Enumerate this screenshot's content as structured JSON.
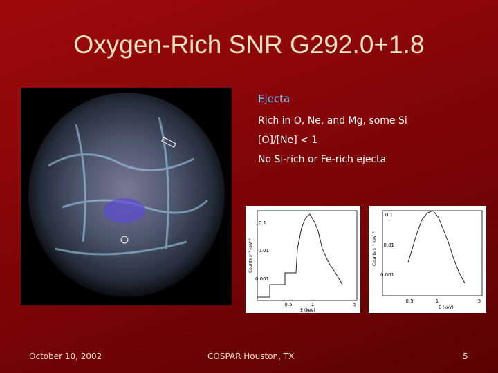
{
  "title": "Oxygen-Rich SNR G292.0+1.8",
  "ejecta": {
    "heading": "Ejecta",
    "items": [
      "Rich in O, Ne, and Mg, some Si",
      "[O]/[Ne] < 1",
      "No Si-rich or Fe-rich ejecta"
    ]
  },
  "spectra": [
    {
      "y_label": "Counts s⁻¹ keV⁻¹",
      "y_ticks": [
        "0.1",
        "0.01",
        "0.001"
      ],
      "x_ticks": [
        "0.5",
        "1",
        "5"
      ],
      "x_label": "E (keV)"
    },
    {
      "y_label": "Counts s⁻¹ keV⁻¹",
      "y_ticks": [
        "0.1",
        "0.01",
        "0.001"
      ],
      "x_ticks": [
        "0.5",
        "1",
        "5"
      ],
      "x_label": "E (keV)"
    }
  ],
  "footer": {
    "date": "October 10, 2002",
    "venue": "COSPAR Houston, TX",
    "page": "5"
  }
}
